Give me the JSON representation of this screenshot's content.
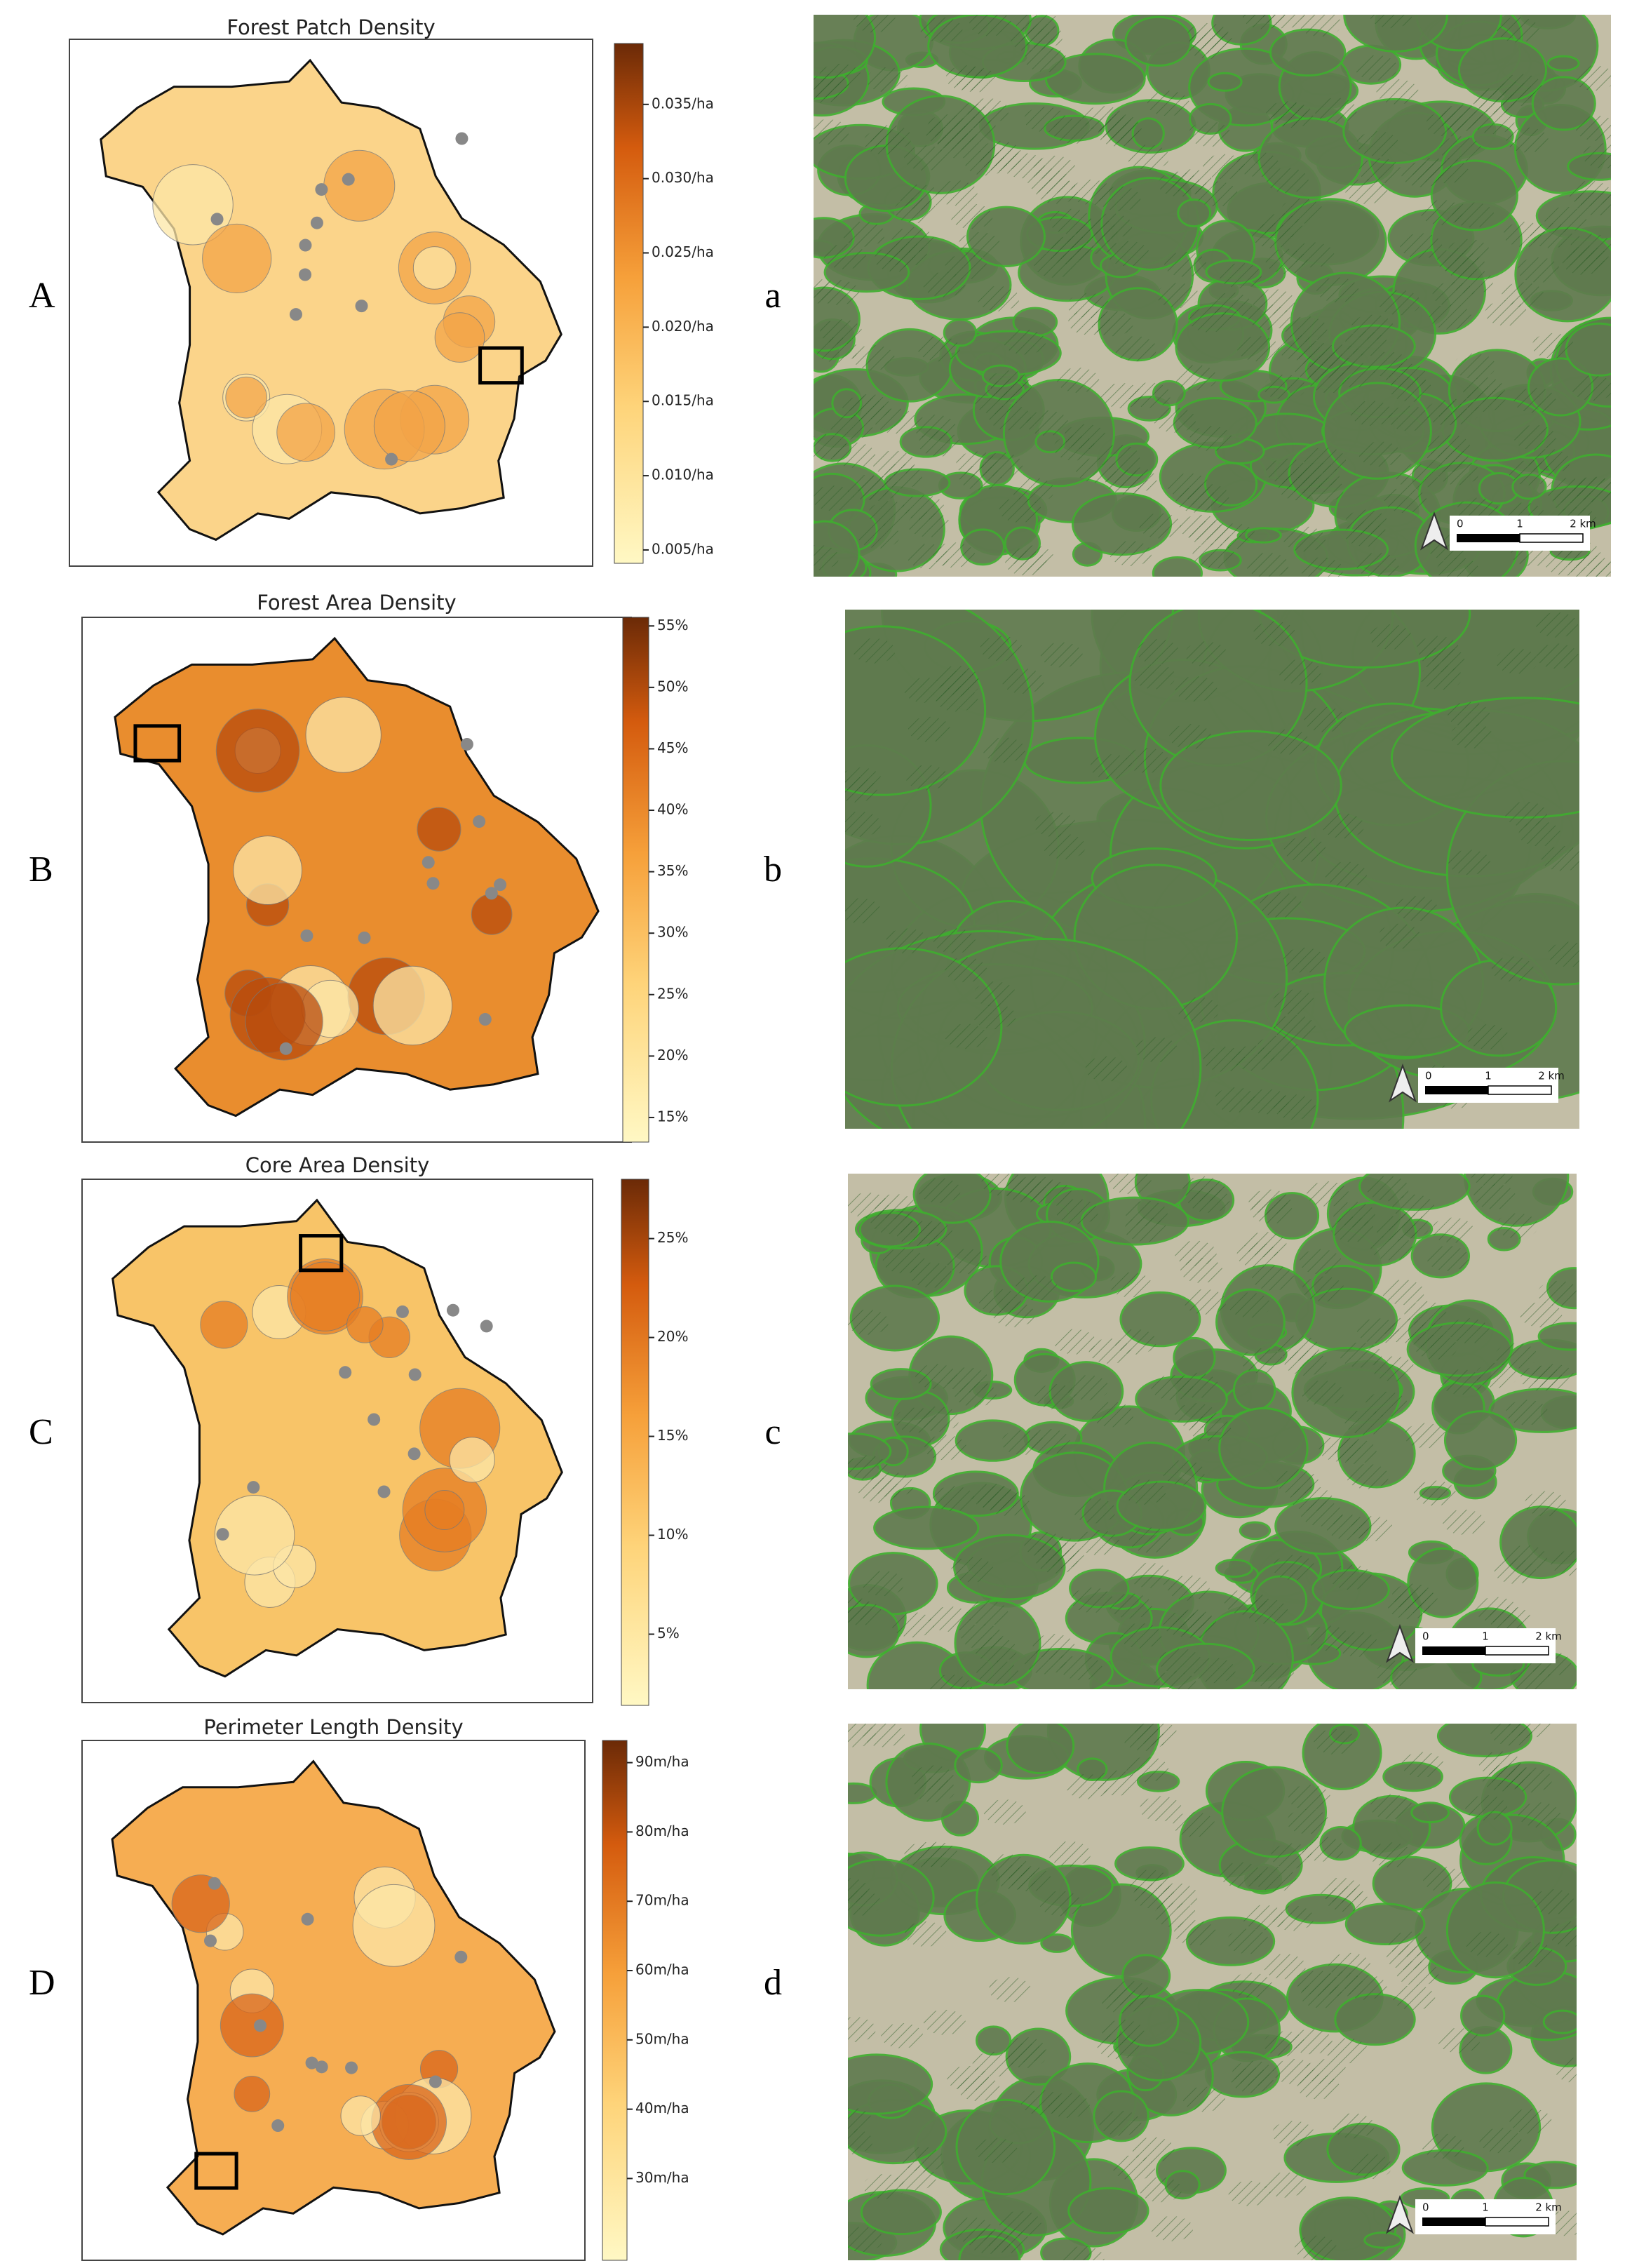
{
  "panels": [
    {
      "letter": "A",
      "title": "Forest Patch Density",
      "image_letter": "a",
      "colorbar": {
        "lim": [
          0.0041,
          0.0391
        ],
        "ticks": [
          {
            "value": 0.005,
            "label": "0.005/ha"
          },
          {
            "value": 0.01,
            "label": "0.010/ha"
          },
          {
            "value": 0.015,
            "label": "0.015/ha"
          },
          {
            "value": 0.02,
            "label": "0.020/ha"
          },
          {
            "value": 0.025,
            "label": "0.025/ha"
          },
          {
            "value": 0.03,
            "label": "0.030/ha"
          },
          {
            "value": 0.035,
            "label": "0.035/ha"
          }
        ]
      },
      "scalebar": [
        "0",
        "1",
        "2 km"
      ]
    },
    {
      "letter": "B",
      "title": "Forest Area Density",
      "image_letter": "b",
      "colorbar": {
        "lim": [
          13,
          55.7
        ],
        "ticks": [
          {
            "value": 15,
            "label": "15%"
          },
          {
            "value": 20,
            "label": "20%"
          },
          {
            "value": 25,
            "label": "25%"
          },
          {
            "value": 30,
            "label": "30%"
          },
          {
            "value": 35,
            "label": "35%"
          },
          {
            "value": 40,
            "label": "40%"
          },
          {
            "value": 45,
            "label": "45%"
          },
          {
            "value": 50,
            "label": "50%"
          },
          {
            "value": 55,
            "label": "55%"
          }
        ]
      },
      "scalebar": [
        "0",
        "1",
        "2 km"
      ]
    },
    {
      "letter": "C",
      "title": "Core Area Density",
      "image_letter": "c",
      "colorbar": {
        "lim": [
          1.4,
          28
        ],
        "ticks": [
          {
            "value": 5,
            "label": "5%"
          },
          {
            "value": 10,
            "label": "10%"
          },
          {
            "value": 15,
            "label": "15%"
          },
          {
            "value": 20,
            "label": "20%"
          },
          {
            "value": 25,
            "label": "25%"
          }
        ]
      },
      "scalebar": [
        "0",
        "1",
        "2 km"
      ]
    },
    {
      "letter": "D",
      "title": "Perimeter Length Density",
      "image_letter": "d",
      "colorbar": {
        "lim": [
          18.2,
          93.2
        ],
        "ticks": [
          {
            "value": 30,
            "label": "30m/ha"
          },
          {
            "value": 40,
            "label": "40m/ha"
          },
          {
            "value": 50,
            "label": "50m/ha"
          },
          {
            "value": 60,
            "label": "60m/ha"
          },
          {
            "value": 70,
            "label": "70m/ha"
          },
          {
            "value": 80,
            "label": "80m/ha"
          },
          {
            "value": 90,
            "label": "90m/ha"
          }
        ]
      },
      "scalebar": [
        "0",
        "1",
        "2 km"
      ]
    }
  ]
}
